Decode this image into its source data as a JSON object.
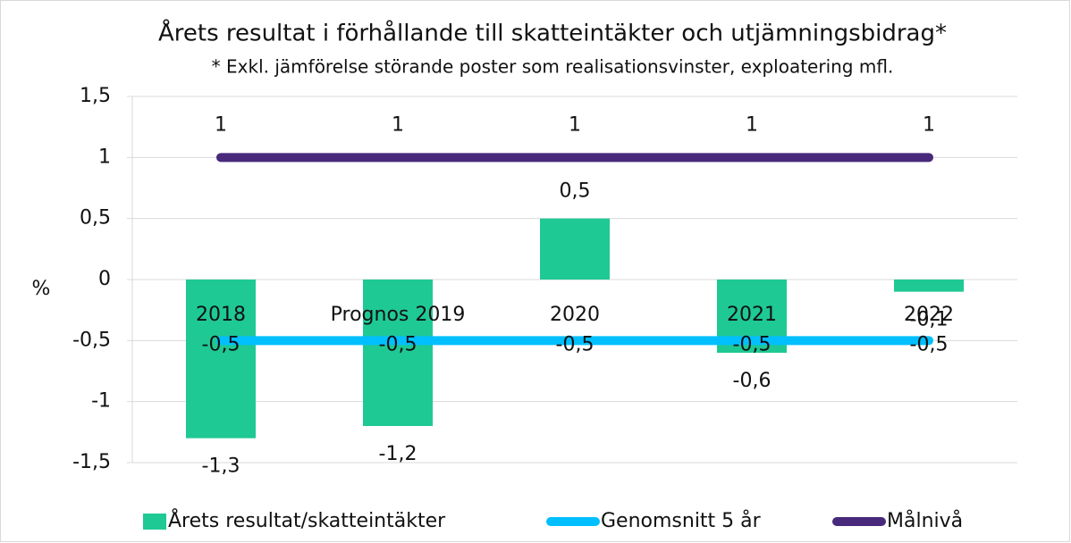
{
  "chart_data": {
    "type": "bar",
    "title": "Årets resultat i förhållande till skatteintäkter och utjämningsbidrag*",
    "subtitle": "* Exkl. jämförelse störande poster som realisationsvinster, exploatering mfl.",
    "y_label": "%",
    "categories": [
      "2018",
      "Prognos 2019",
      "2020",
      "2021",
      "2022"
    ],
    "series": [
      {
        "name": "Årets resultat/skatteintäkter",
        "type": "bar",
        "color": "#1fc994",
        "values": [
          -1.3,
          -1.2,
          0.5,
          -0.6,
          -0.1
        ],
        "value_labels": [
          "-1,3",
          "-1,2",
          "0,5",
          "-0,6",
          "-0,1"
        ]
      },
      {
        "name": "Genomsnitt 5 år",
        "type": "line",
        "color": "#00bfff",
        "values": [
          -0.5,
          -0.5,
          -0.5,
          -0.5,
          -0.5
        ],
        "value_labels": [
          "-0,5",
          "-0,5",
          "-0,5",
          "-0,5",
          "-0,5"
        ]
      },
      {
        "name": "Målnivå",
        "type": "line",
        "color": "#48297c",
        "values": [
          1,
          1,
          1,
          1,
          1
        ]
      }
    ],
    "ylim": [
      -1.5,
      1.5
    ],
    "yticks": [
      {
        "value": -1.5,
        "label": "-1,5"
      },
      -1,
      {
        "value": -0.5,
        "label": "-0,5"
      },
      0,
      {
        "value": 0.5,
        "label": "0,5"
      },
      1,
      {
        "value": 1.5,
        "label": "1,5"
      }
    ],
    "grid": true
  }
}
